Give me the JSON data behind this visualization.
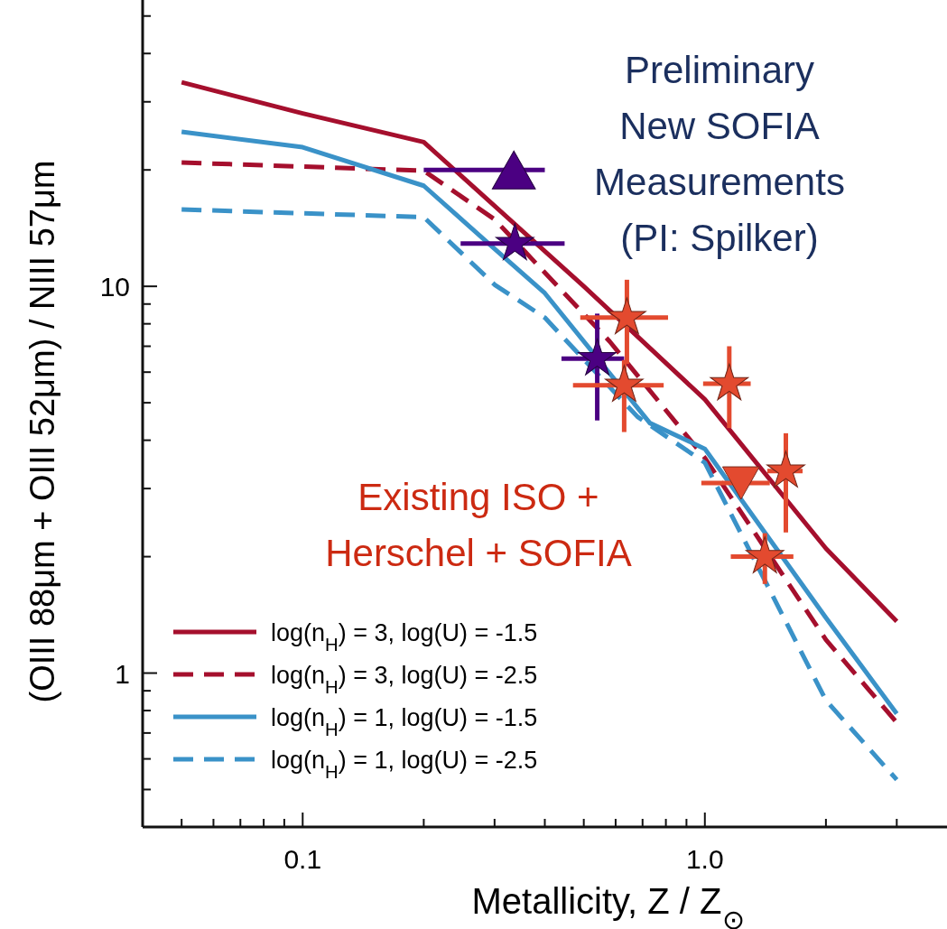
{
  "chart_data": {
    "type": "line",
    "xlabel": "Metallicity, Z / Z$_{⊙}$",
    "ylabel": "(OIII 88μm + OIII 52μm) / NIII 57μm",
    "log": "xy",
    "legend": "bottom left",
    "xlim": [
      0.04,
      4
    ],
    "ylim": [
      0.4,
      55
    ],
    "xticks": [
      {
        "value": 0.05,
        "label": null
      },
      {
        "value": 0.06,
        "label": null
      },
      {
        "value": 0.07,
        "label": null
      },
      {
        "value": 0.08,
        "label": null
      },
      {
        "value": 0.09,
        "label": null
      },
      0.1,
      {
        "value": 0.2,
        "label": null
      },
      {
        "value": 0.3,
        "label": null
      },
      {
        "value": 0.4,
        "label": null
      },
      {
        "value": 0.5,
        "label": null
      },
      {
        "value": 0.6,
        "label": null
      },
      {
        "value": 0.7,
        "label": null
      },
      {
        "value": 0.8,
        "label": null
      },
      {
        "value": 0.9,
        "label": null
      },
      {
        "value": 1,
        "label": "1.0"
      },
      {
        "value": 2,
        "label": null
      },
      {
        "value": 3,
        "label": null
      }
    ],
    "yticks": [
      {
        "value": 0.5,
        "label": null
      },
      {
        "value": 0.6,
        "label": null
      },
      {
        "value": 0.7,
        "label": null
      },
      {
        "value": 0.8,
        "label": null
      },
      {
        "value": 0.9,
        "label": null
      },
      1,
      {
        "value": 2,
        "label": null
      },
      {
        "value": 3,
        "label": null
      },
      {
        "value": 4,
        "label": null
      },
      {
        "value": 5,
        "label": null
      },
      {
        "value": 6,
        "label": null
      },
      {
        "value": 7,
        "label": null
      },
      {
        "value": 8,
        "label": null
      },
      {
        "value": 9,
        "label": null
      },
      10,
      {
        "value": 20,
        "label": null
      },
      {
        "value": 30,
        "label": null
      },
      {
        "value": 40,
        "label": null
      },
      {
        "value": 50,
        "label": null
      }
    ],
    "annotations": [
      "Preliminary\nNew SOFIA\nMeasurements\n(PI: Spilker)",
      "Existing ISO +\nHerschel + SOFIA"
    ],
    "series": [
      {
        "name": "log(n$_{H}$) = 3, log(U) = -1.5",
        "color": "#a50f2d",
        "line_style": "solid",
        "x": [
          0.05,
          0.1,
          0.2,
          0.5,
          1,
          2,
          3
        ],
        "values": [
          33.7,
          28,
          23.6,
          10,
          5.1,
          2.1,
          1.36
        ]
      },
      {
        "name": "log(n$_{H}$) = 3, log(U) = -2.5",
        "color": "#a50f2d",
        "line_style": "dashed",
        "x": [
          0.05,
          0.1,
          0.2,
          0.3,
          0.58,
          1,
          2,
          3
        ],
        "values": [
          20.9,
          20.4,
          19.9,
          14.9,
          7.2,
          3.6,
          1.22,
          0.745
        ]
      },
      {
        "name": "log(n$_{H}$) = 1, log(U) = -1.5",
        "color": "#3a92c8",
        "line_style": "solid",
        "x": [
          0.05,
          0.1,
          0.2,
          0.3,
          0.4,
          0.73,
          1,
          2,
          3
        ],
        "values": [
          25.1,
          22.9,
          18.2,
          12.5,
          9.6,
          4.43,
          3.8,
          1.39,
          0.785
        ]
      },
      {
        "name": "log(n$_{H}$) = 1, log(U) = -2.5",
        "color": "#3a92c8",
        "line_style": "dashed",
        "x": [
          0.05,
          0.2,
          0.3,
          0.4,
          0.68,
          1,
          2,
          3
        ],
        "values": [
          15.8,
          15.1,
          10.1,
          8.3,
          4.6,
          3.5,
          0.85,
          0.53
        ]
      },
      {
        "type": "scatter",
        "marker": "triangle",
        "color": "#4b0082",
        "x": [
          0.335
        ],
        "values": [
          20
        ],
        "xerrors": [
          [
            0.2,
            0.4
          ]
        ]
      },
      {
        "type": "scatter",
        "marker": "star",
        "color": "#4b0082",
        "x": [
          0.337,
          0.54
        ],
        "values": [
          12.9,
          6.5
        ],
        "xerrors": [
          [
            0.247,
            0.448
          ],
          [
            0.44,
            0.63
          ]
        ],
        "errors": [
          null,
          [
            4.5,
            8.5
          ]
        ]
      },
      {
        "type": "scatter",
        "marker": "star",
        "color": "#e34a2f",
        "x": [
          0.64,
          0.63,
          1.15,
          1.59,
          1.41
        ],
        "values": [
          8.3,
          5.55,
          5.6,
          3.33,
          2.0
        ],
        "xerrors": [
          [
            0.49,
            0.81
          ],
          [
            0.47,
            0.79
          ],
          [
            0.99,
            1.3
          ],
          [
            1.43,
            1.75
          ],
          [
            1.16,
            1.66
          ]
        ],
        "errors": [
          [
            6.3,
            10.4
          ],
          [
            4.2,
            6.45
          ],
          [
            4.3,
            7.0
          ],
          [
            2.31,
            4.17
          ],
          [
            1.7,
            2.3
          ]
        ]
      },
      {
        "type": "scatter",
        "marker": "triangle-down",
        "color": "#e34a2f",
        "x": [
          1.23
        ],
        "values": [
          3.1
        ],
        "xerrors": [
          [
            0.98,
            1.45
          ]
        ]
      }
    ]
  }
}
